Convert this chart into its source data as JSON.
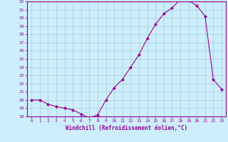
{
  "x": [
    0,
    1,
    2,
    3,
    4,
    5,
    6,
    7,
    8,
    9,
    10,
    11,
    12,
    13,
    14,
    15,
    16,
    17,
    18,
    19,
    20,
    21,
    22,
    23
  ],
  "y": [
    20.0,
    20.0,
    19.5,
    19.2,
    19.0,
    18.8,
    18.3,
    17.8,
    18.2,
    20.0,
    21.5,
    22.5,
    24.0,
    25.5,
    27.5,
    29.2,
    30.5,
    31.2,
    32.2,
    32.1,
    31.5,
    30.2,
    22.5,
    21.3
  ],
  "ylim": [
    18,
    32
  ],
  "yticks": [
    18,
    19,
    20,
    21,
    22,
    23,
    24,
    25,
    26,
    27,
    28,
    29,
    30,
    31,
    32
  ],
  "xticks": [
    0,
    1,
    2,
    3,
    4,
    5,
    6,
    7,
    8,
    9,
    10,
    11,
    12,
    13,
    14,
    15,
    16,
    17,
    18,
    19,
    20,
    21,
    22,
    23
  ],
  "xlabel": "Windchill (Refroidissement éolien,°C)",
  "line_color": "#990099",
  "marker": "D",
  "marker_size": 2.0,
  "bg_color": "#cceeff",
  "grid_color": "#aacccc",
  "figsize": [
    3.2,
    2.0
  ],
  "dpi": 100
}
